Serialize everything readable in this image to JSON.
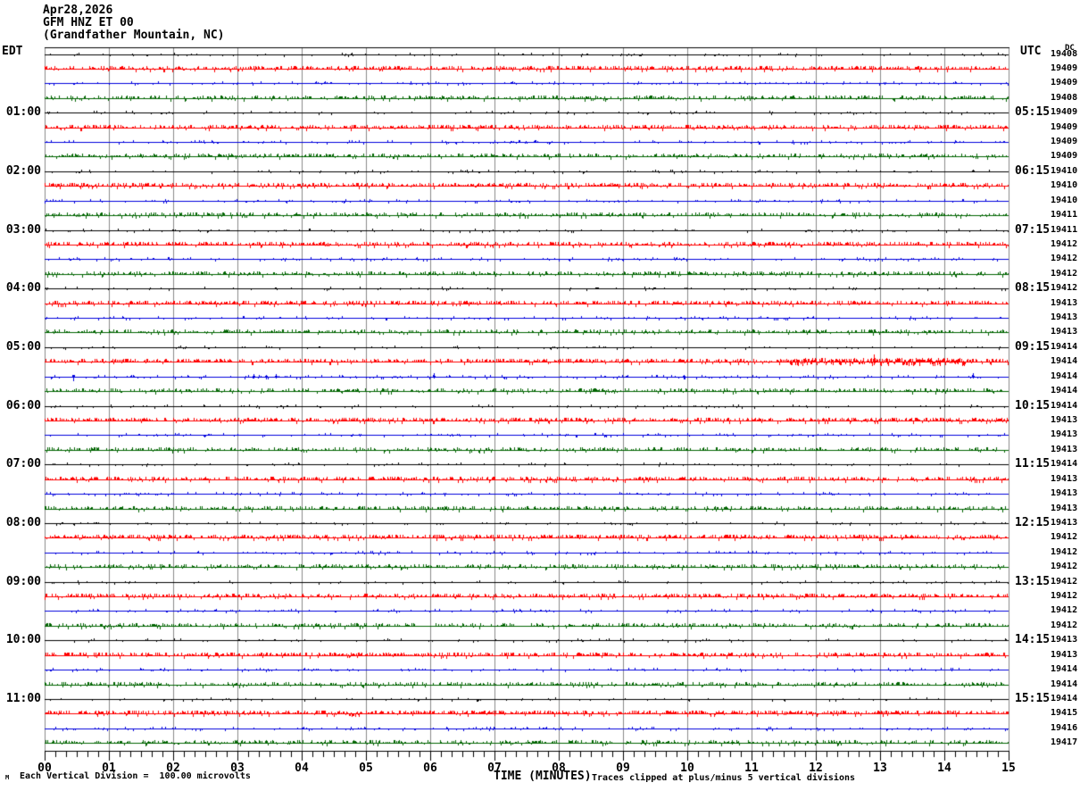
{
  "title": {
    "line1": "Apr28,2026",
    "line2": "GFM HNZ ET 00",
    "line3": "(Grandfather Mountain, NC)"
  },
  "axes": {
    "left_header": "EDT",
    "right_header": "UTC",
    "dc_header": "DC",
    "x_label": "TIME (MINUTES)",
    "x_ticks": [
      "00",
      "01",
      "02",
      "03",
      "04",
      "05",
      "06",
      "07",
      "08",
      "09",
      "10",
      "11",
      "12",
      "13",
      "14",
      "15"
    ],
    "left_labels": [
      {
        "row": 5,
        "label": "01:00"
      },
      {
        "row": 9,
        "label": "02:00"
      },
      {
        "row": 13,
        "label": "03:00"
      },
      {
        "row": 17,
        "label": "04:00"
      },
      {
        "row": 21,
        "label": "05:00"
      },
      {
        "row": 25,
        "label": "06:00"
      },
      {
        "row": 29,
        "label": "07:00"
      },
      {
        "row": 33,
        "label": "08:00"
      },
      {
        "row": 37,
        "label": "09:00"
      },
      {
        "row": 41,
        "label": "10:00"
      },
      {
        "row": 45,
        "label": "11:00"
      }
    ],
    "right_labels": [
      {
        "row": 5,
        "label": "05:15"
      },
      {
        "row": 9,
        "label": "06:15"
      },
      {
        "row": 13,
        "label": "07:15"
      },
      {
        "row": 17,
        "label": "08:15"
      },
      {
        "row": 21,
        "label": "09:15"
      },
      {
        "row": 25,
        "label": "10:15"
      },
      {
        "row": 29,
        "label": "11:15"
      },
      {
        "row": 33,
        "label": "12:15"
      },
      {
        "row": 37,
        "label": "13:15"
      },
      {
        "row": 41,
        "label": "14:15"
      },
      {
        "row": 45,
        "label": "15:15"
      }
    ]
  },
  "footer": {
    "scale_note": "Each Vertical Division =  100.00 microvolts",
    "clip_note": "Traces clipped at plus/minus 5 vertical divisions",
    "corner_glyph": "M"
  },
  "palette": {
    "black": "#000000",
    "red": "#ff0000",
    "blue": "#0000dd",
    "green": "#006400",
    "grid": "#8a8a8a",
    "axis": "#000000"
  },
  "chart_data": {
    "type": "line",
    "subtype": "helicorder-seismogram",
    "date": "Apr28,2026",
    "station": "GFM HNZ ET 00",
    "station_location": "Grandfather Mountain, NC",
    "x_minutes_range": [
      0,
      15
    ],
    "minutes_per_row": 15,
    "row_color_cycle": [
      "black",
      "red",
      "blue",
      "green"
    ],
    "vertical_division_microvolts": 100.0,
    "clip_divisions": 5,
    "grid": "vertical-minute-lines",
    "rows": [
      {
        "edt": "00:00",
        "color": "black",
        "dc": "19408",
        "noise": 0.4
      },
      {
        "edt": "00:15",
        "color": "red",
        "dc": "19409",
        "noise": 2.2
      },
      {
        "edt": "00:30",
        "color": "blue",
        "dc": "19409",
        "noise": 0.6
      },
      {
        "edt": "00:45",
        "color": "green",
        "dc": "19408",
        "noise": 1.8
      },
      {
        "edt": "01:00",
        "color": "black",
        "dc": "19409",
        "noise": 0.4
      },
      {
        "edt": "01:15",
        "color": "red",
        "dc": "19409",
        "noise": 2.2
      },
      {
        "edt": "01:30",
        "color": "blue",
        "dc": "19409",
        "noise": 0.6
      },
      {
        "edt": "01:45",
        "color": "green",
        "dc": "19409",
        "noise": 1.8
      },
      {
        "edt": "02:00",
        "color": "black",
        "dc": "19410",
        "noise": 0.4
      },
      {
        "edt": "02:15",
        "color": "red",
        "dc": "19410",
        "noise": 2.8
      },
      {
        "edt": "02:30",
        "color": "blue",
        "dc": "19410",
        "noise": 0.6
      },
      {
        "edt": "02:45",
        "color": "green",
        "dc": "19411",
        "noise": 1.8
      },
      {
        "edt": "03:00",
        "color": "black",
        "dc": "19411",
        "noise": 0.4
      },
      {
        "edt": "03:15",
        "color": "red",
        "dc": "19412",
        "noise": 2.2
      },
      {
        "edt": "03:30",
        "color": "blue",
        "dc": "19412",
        "noise": 0.6
      },
      {
        "edt": "03:45",
        "color": "green",
        "dc": "19412",
        "noise": 1.8
      },
      {
        "edt": "04:00",
        "color": "black",
        "dc": "19412",
        "noise": 0.4
      },
      {
        "edt": "04:15",
        "color": "red",
        "dc": "19413",
        "noise": 2.2
      },
      {
        "edt": "04:30",
        "color": "blue",
        "dc": "19413",
        "noise": 0.6
      },
      {
        "edt": "04:45",
        "color": "green",
        "dc": "19413",
        "noise": 1.8
      },
      {
        "edt": "05:00",
        "color": "black",
        "dc": "19414",
        "noise": 0.4
      },
      {
        "edt": "05:15",
        "color": "red",
        "dc": "19414",
        "noise": 2.3
      },
      {
        "edt": "05:30",
        "color": "blue",
        "dc": "19414",
        "noise": 0.8
      },
      {
        "edt": "05:45",
        "color": "green",
        "dc": "19414",
        "noise": 1.8
      },
      {
        "edt": "06:00",
        "color": "black",
        "dc": "19414",
        "noise": 0.4
      },
      {
        "edt": "06:15",
        "color": "red",
        "dc": "19413",
        "noise": 2.6
      },
      {
        "edt": "06:30",
        "color": "blue",
        "dc": "19413",
        "noise": 0.6
      },
      {
        "edt": "06:45",
        "color": "green",
        "dc": "19413",
        "noise": 1.8
      },
      {
        "edt": "07:00",
        "color": "black",
        "dc": "19414",
        "noise": 0.4
      },
      {
        "edt": "07:15",
        "color": "red",
        "dc": "19413",
        "noise": 2.2
      },
      {
        "edt": "07:30",
        "color": "blue",
        "dc": "19413",
        "noise": 0.6
      },
      {
        "edt": "07:45",
        "color": "green",
        "dc": "19413",
        "noise": 1.8
      },
      {
        "edt": "08:00",
        "color": "black",
        "dc": "19413",
        "noise": 0.4
      },
      {
        "edt": "08:15",
        "color": "red",
        "dc": "19412",
        "noise": 2.5
      },
      {
        "edt": "08:30",
        "color": "blue",
        "dc": "19412",
        "noise": 0.6
      },
      {
        "edt": "08:45",
        "color": "green",
        "dc": "19412",
        "noise": 1.8
      },
      {
        "edt": "09:00",
        "color": "black",
        "dc": "19412",
        "noise": 0.4
      },
      {
        "edt": "09:15",
        "color": "red",
        "dc": "19412",
        "noise": 2.2
      },
      {
        "edt": "09:30",
        "color": "blue",
        "dc": "19412",
        "noise": 0.6
      },
      {
        "edt": "09:45",
        "color": "green",
        "dc": "19412",
        "noise": 1.8
      },
      {
        "edt": "10:00",
        "color": "black",
        "dc": "19413",
        "noise": 0.4
      },
      {
        "edt": "10:15",
        "color": "red",
        "dc": "19413",
        "noise": 2.2
      },
      {
        "edt": "10:30",
        "color": "blue",
        "dc": "19414",
        "noise": 0.6
      },
      {
        "edt": "10:45",
        "color": "green",
        "dc": "19414",
        "noise": 1.8
      },
      {
        "edt": "11:00",
        "color": "black",
        "dc": "19414",
        "noise": 0.4
      },
      {
        "edt": "11:15",
        "color": "red",
        "dc": "19415",
        "noise": 2.8
      },
      {
        "edt": "11:30",
        "color": "blue",
        "dc": "19416",
        "noise": 0.6
      },
      {
        "edt": "11:45",
        "color": "green",
        "dc": "19417",
        "noise": 1.8
      }
    ],
    "events": [
      {
        "row": 22,
        "type": "burst",
        "start_min": 11.6,
        "end_min": 14.3,
        "amp": 4
      },
      {
        "row": 22,
        "type": "spike",
        "min": 12.9,
        "amp": 8
      },
      {
        "row": 23,
        "type": "spike",
        "min": 0.45,
        "amp": -5
      },
      {
        "row": 23,
        "type": "spike",
        "min": 3.25,
        "amp": 3
      },
      {
        "row": 23,
        "type": "spike",
        "min": 3.45,
        "amp": -3
      },
      {
        "row": 23,
        "type": "spike",
        "min": 3.6,
        "amp": 3
      },
      {
        "row": 23,
        "type": "spike",
        "min": 6.05,
        "amp": 4
      },
      {
        "row": 23,
        "type": "spike",
        "min": 9.95,
        "amp": -3
      },
      {
        "row": 23,
        "type": "spike",
        "min": 14.45,
        "amp": 4
      },
      {
        "row": 48,
        "type": "spike",
        "min": 10.7,
        "amp": 3
      }
    ]
  }
}
